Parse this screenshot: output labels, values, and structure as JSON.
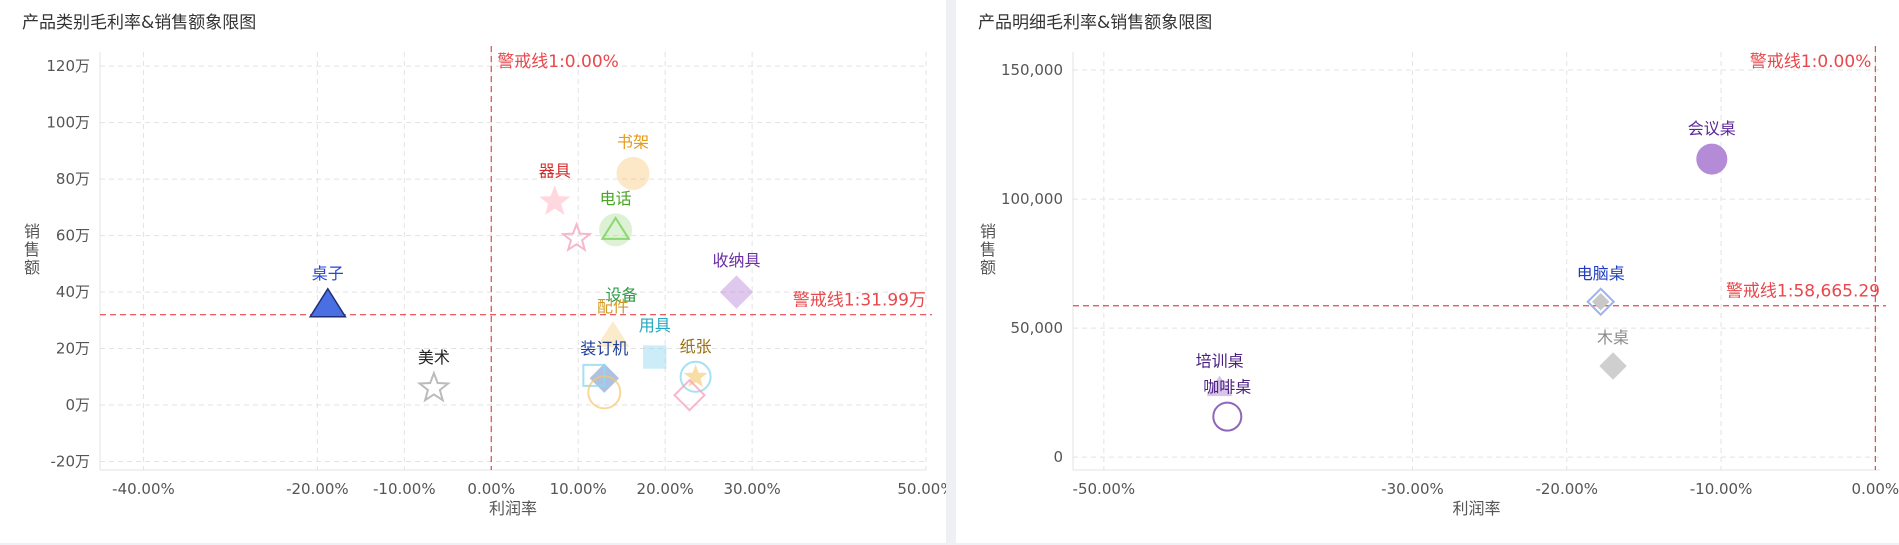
{
  "chart_data": [
    {
      "type": "scatter",
      "title": "产品类别毛利率&销售额象限图",
      "xlabel": "利润率",
      "ylabel": "销售额",
      "xlim": [
        -0.45,
        0.5
      ],
      "ylim": [
        -230000,
        1250000
      ],
      "x_ticks": [
        {
          "v": -0.4,
          "label": "-40.00%"
        },
        {
          "v": -0.2,
          "label": "-20.00%"
        },
        {
          "v": -0.1,
          "label": "-10.00%"
        },
        {
          "v": 0.0,
          "label": "0.00%"
        },
        {
          "v": 0.1,
          "label": "10.00%"
        },
        {
          "v": 0.2,
          "label": "20.00%"
        },
        {
          "v": 0.3,
          "label": "30.00%"
        },
        {
          "v": 0.5,
          "label": "50.00%"
        }
      ],
      "y_ticks": [
        {
          "v": 1200000,
          "label": "120万"
        },
        {
          "v": 1000000,
          "label": "100万"
        },
        {
          "v": 800000,
          "label": "80万"
        },
        {
          "v": 600000,
          "label": "60万"
        },
        {
          "v": 400000,
          "label": "40万"
        },
        {
          "v": 200000,
          "label": "20万"
        },
        {
          "v": 0,
          "label": "0万"
        },
        {
          "v": -200000,
          "label": "-20万"
        }
      ],
      "grid": true,
      "ref_lines": [
        {
          "axis": "x",
          "value": 0.0,
          "label": "警戒线1:0.00%",
          "color": "#e8474b"
        },
        {
          "axis": "y",
          "value": 319900,
          "label": "警戒线1:31.99万",
          "color": "#e8474b"
        }
      ],
      "points": [
        {
          "label": "书架",
          "x": 0.163,
          "y": 820000,
          "shape": "circle",
          "color": "#f5a623",
          "filled": true,
          "opacity": 0.25,
          "size": 16,
          "label_color": "#e69a19"
        },
        {
          "label": "器具",
          "x": 0.073,
          "y": 720000,
          "shape": "star",
          "color": "#ff8fa3",
          "filled": true,
          "opacity": 0.35,
          "size": 15,
          "label_color": "#d42828"
        },
        {
          "label": "",
          "x": 0.098,
          "y": 590000,
          "shape": "star",
          "color": "#f4a6be",
          "filled": false,
          "opacity": 0.8,
          "size": 14
        },
        {
          "label": "电话",
          "x": 0.143,
          "y": 620000,
          "shape": "circle",
          "color": "#7ccf5a",
          "filled": true,
          "opacity": 0.25,
          "size": 16,
          "label_color": "#48a524"
        },
        {
          "label": "",
          "x": 0.143,
          "y": 620000,
          "shape": "triangle",
          "color": "#7ccf5a",
          "filled": false,
          "opacity": 0.8,
          "size": 12
        },
        {
          "label": "收纳具",
          "x": 0.282,
          "y": 400000,
          "shape": "diamond",
          "color": "#b786d9",
          "filled": true,
          "opacity": 0.45,
          "size": 16,
          "label_color": "#6a2fa6"
        },
        {
          "label": "桌子",
          "x": -0.188,
          "y": 355000,
          "shape": "triangle",
          "color": "#4a6fe3",
          "filled": true,
          "opacity": 1,
          "size": 16,
          "stroke": "#1d2e7a",
          "label_color": "#2346d6"
        },
        {
          "label": "设备",
          "x": 0.15,
          "y": 300000,
          "shape": "circle",
          "color": "#4dbb6a",
          "filled": false,
          "opacity": 0.0,
          "size": 1,
          "label_color": "#2e9b48"
        },
        {
          "label": "配件",
          "x": 0.14,
          "y": 245000,
          "shape": "triangle",
          "color": "#f5c86a",
          "filled": true,
          "opacity": 0.35,
          "size": 14,
          "label_color": "#d29a25"
        },
        {
          "label": "用具",
          "x": 0.188,
          "y": 170000,
          "shape": "square",
          "color": "#8fd9ef",
          "filled": true,
          "opacity": 0.45,
          "size": 16,
          "label_color": "#21a8c2"
        },
        {
          "label": "纸张",
          "x": 0.235,
          "y": 100000,
          "shape": "circle",
          "color": "#8fd9ef",
          "filled": false,
          "opacity": 0.8,
          "size": 15,
          "label_color": "#9a6f0e"
        },
        {
          "label": "",
          "x": 0.235,
          "y": 100000,
          "shape": "star",
          "color": "#f5c86a",
          "filled": true,
          "opacity": 0.6,
          "size": 11
        },
        {
          "label": "装订机",
          "x": 0.13,
          "y": 95000,
          "shape": "diamond",
          "color": "#6f8fc8",
          "filled": true,
          "opacity": 0.55,
          "size": 14,
          "label_color": "#1f3e9a"
        },
        {
          "label": "",
          "x": 0.118,
          "y": 105000,
          "shape": "square",
          "color": "#8fd9ef",
          "filled": false,
          "opacity": 0.8,
          "size": 15
        },
        {
          "label": "",
          "x": 0.13,
          "y": 45000,
          "shape": "circle",
          "color": "#f5c86a",
          "filled": false,
          "opacity": 0.7,
          "size": 16
        },
        {
          "label": "",
          "x": 0.228,
          "y": 35000,
          "shape": "diamond",
          "color": "#f4a6be",
          "filled": false,
          "opacity": 0.8,
          "size": 15
        },
        {
          "label": "美术",
          "x": -0.066,
          "y": 60000,
          "shape": "star",
          "color": "#bbbbbb",
          "filled": false,
          "opacity": 1,
          "size": 15,
          "label_color": "#222222"
        }
      ]
    },
    {
      "type": "scatter",
      "title": "产品明细毛利率&销售额象限图",
      "xlabel": "利润率",
      "ylabel": "销售额",
      "xlim": [
        -0.52,
        0.003
      ],
      "ylim": [
        -5000,
        157000
      ],
      "x_ticks": [
        {
          "v": -0.5,
          "label": "-50.00%"
        },
        {
          "v": -0.3,
          "label": "-30.00%"
        },
        {
          "v": -0.2,
          "label": "-20.00%"
        },
        {
          "v": -0.1,
          "label": "-10.00%"
        },
        {
          "v": 0.0,
          "label": "0.00%"
        }
      ],
      "y_ticks": [
        {
          "v": 150000,
          "label": "150,000"
        },
        {
          "v": 100000,
          "label": "100,000"
        },
        {
          "v": 50000,
          "label": "50,000"
        },
        {
          "v": 0,
          "label": "0"
        }
      ],
      "grid": true,
      "ref_lines": [
        {
          "axis": "x",
          "value": 0.0,
          "label": "警戒线1:0.00%",
          "color": "#e8474b"
        },
        {
          "axis": "y",
          "value": 58665.29,
          "label": "警戒线1:58,665.29",
          "color": "#e8474b"
        }
      ],
      "points": [
        {
          "label": "会议桌",
          "x": -0.106,
          "y": 115500,
          "shape": "circle",
          "color": "#b48bd6",
          "filled": true,
          "opacity": 1,
          "size": 15,
          "label_color": "#5b2696"
        },
        {
          "label": "电脑桌",
          "x": -0.178,
          "y": 60200,
          "shape": "diamond",
          "color": "#9db3ee",
          "filled": false,
          "opacity": 1,
          "size": 13,
          "label_color": "#1f3ec0"
        },
        {
          "label": "",
          "x": -0.178,
          "y": 60200,
          "shape": "diamond",
          "color": "#c8c8c8",
          "filled": true,
          "opacity": 1,
          "size": 8
        },
        {
          "label": "木桌",
          "x": -0.17,
          "y": 35300,
          "shape": "diamond",
          "color": "#cfcfcf",
          "filled": true,
          "opacity": 1,
          "size": 13,
          "label_color": "#8a8a8a"
        },
        {
          "label": "培训桌",
          "x": -0.425,
          "y": 27000,
          "shape": "triangle",
          "color": "#b48bd6",
          "filled": true,
          "opacity": 0.5,
          "size": 11,
          "label_color": "#4a1f82"
        },
        {
          "label": "咖啡桌",
          "x": -0.42,
          "y": 15700,
          "shape": "circle",
          "color": "#8e67b8",
          "filled": false,
          "opacity": 1,
          "size": 14,
          "label_color": "#4a1f82"
        }
      ]
    }
  ]
}
